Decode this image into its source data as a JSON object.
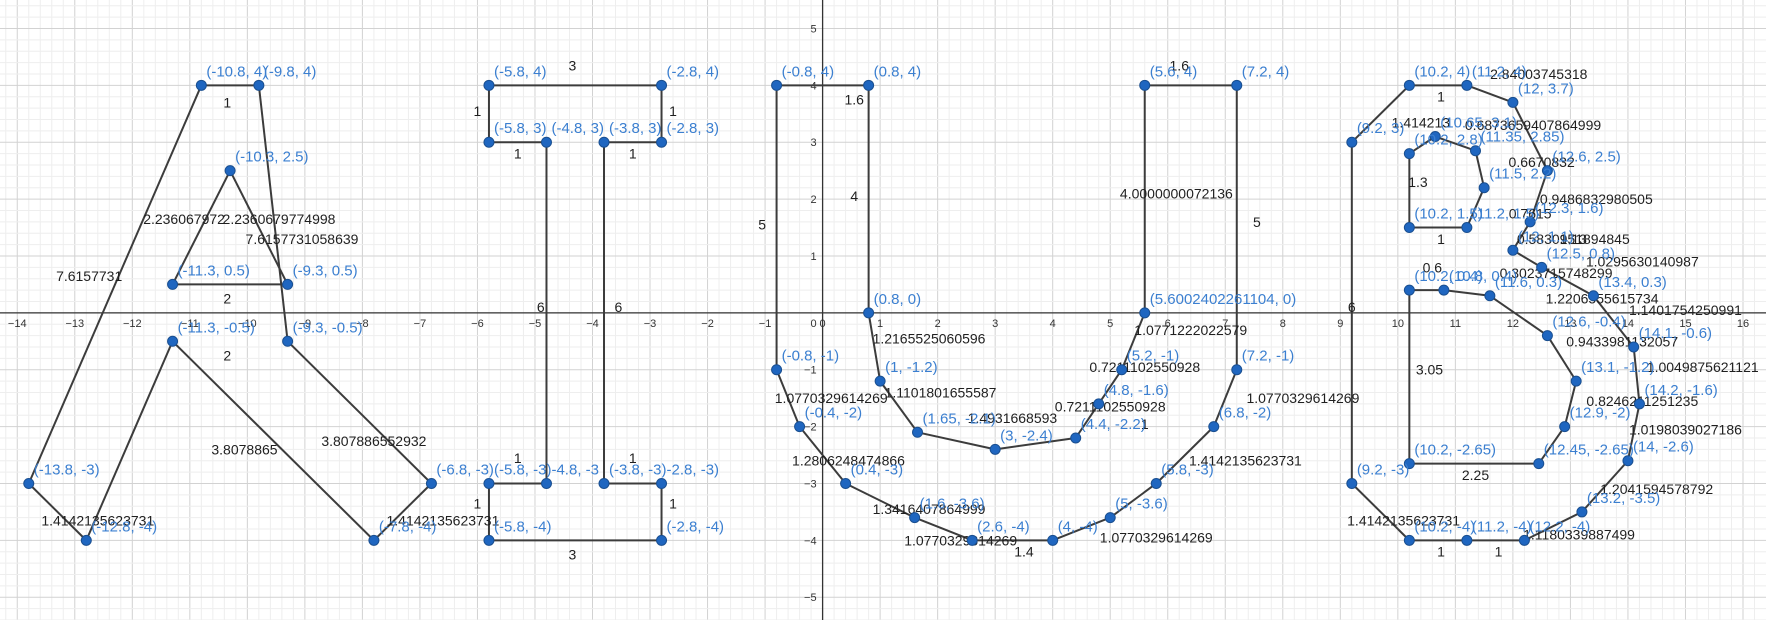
{
  "view": {
    "xlim": [
      -14.3,
      16.4
    ],
    "ylim": [
      -5.4,
      5.5
    ],
    "grid": true,
    "minor_step": 0.2,
    "major_step": 1
  },
  "colors": {
    "point": "#1f66c0",
    "point_label": "#3b7fd0",
    "segment": "#3c3c3c",
    "length_label": "#1f1f1f",
    "axis": "#333333"
  },
  "x_ticks": [
    -14,
    -13,
    -12,
    -11,
    -10,
    -9,
    -8,
    -7,
    -6,
    -5,
    -4,
    -3,
    -2,
    -1,
    0,
    1,
    2,
    3,
    4,
    5,
    6,
    7,
    8,
    9,
    10,
    11,
    12,
    13,
    14,
    15,
    16
  ],
  "y_ticks": [
    -5,
    -4,
    -3,
    -2,
    -1,
    1,
    2,
    3,
    4,
    5
  ],
  "points": [
    {
      "x": -10.8,
      "y": 4,
      "label": "(-10.8, 4)"
    },
    {
      "x": -9.8,
      "y": 4,
      "label": "(-9.8, 4)"
    },
    {
      "x": -10.3,
      "y": 2.5,
      "label": "(-10.3, 2.5)"
    },
    {
      "x": -11.3,
      "y": 0.5,
      "label": "(-11.3, 0.5)"
    },
    {
      "x": -9.3,
      "y": 0.5,
      "label": "(-9.3, 0.5)"
    },
    {
      "x": -11.3,
      "y": -0.5,
      "label": "(-11.3, -0.5)"
    },
    {
      "x": -9.3,
      "y": -0.5,
      "label": "(-9.3, -0.5)"
    },
    {
      "x": -13.8,
      "y": -3,
      "label": "(-13.8, -3)"
    },
    {
      "x": -12.8,
      "y": -4,
      "label": "(-12.8, -4)"
    },
    {
      "x": -7.8,
      "y": -4,
      "label": "(-7.8, -4)"
    },
    {
      "x": -6.8,
      "y": -3,
      "label": "(-6.8, -3)"
    },
    {
      "x": -5.8,
      "y": 4,
      "label": "(-5.8, 4)"
    },
    {
      "x": -2.8,
      "y": 4,
      "label": "(-2.8, 4)"
    },
    {
      "x": -5.8,
      "y": 3,
      "label": "(-5.8, 3)"
    },
    {
      "x": -4.8,
      "y": 3,
      "label": "(-4.8, 3)"
    },
    {
      "x": -3.8,
      "y": 3,
      "label": "(-3.8, 3)"
    },
    {
      "x": -2.8,
      "y": 3,
      "label": "(-2.8, 3)"
    },
    {
      "x": -5.8,
      "y": -3,
      "label": "(-5.8, -3)"
    },
    {
      "x": -4.8,
      "y": -3,
      "label": "-4.8, -3"
    },
    {
      "x": -3.8,
      "y": -3,
      "label": "(-3.8, -3)"
    },
    {
      "x": -2.8,
      "y": -3,
      "label": "-2.8, -3)"
    },
    {
      "x": -5.8,
      "y": -4,
      "label": "(-5.8, -4)"
    },
    {
      "x": -2.8,
      "y": -4,
      "label": "(-2.8, -4)"
    },
    {
      "x": -0.8,
      "y": 4,
      "label": "(-0.8, 4)"
    },
    {
      "x": 0.8,
      "y": 4,
      "label": "(0.8, 4)"
    },
    {
      "x": 0.8,
      "y": 0,
      "label": "(0.8, 0)"
    },
    {
      "x": -0.8,
      "y": -1,
      "label": "(-0.8, -1)"
    },
    {
      "x": 1,
      "y": -1.2,
      "label": "(1, -1.2)"
    },
    {
      "x": -0.4,
      "y": -2,
      "label": "(-0.4, -2)"
    },
    {
      "x": 1.65,
      "y": -2.1,
      "label": "(1.65, -2.1)"
    },
    {
      "x": 3,
      "y": -2.4,
      "label": "(3, -2.4)"
    },
    {
      "x": 4.4,
      "y": -2.2,
      "label": "(4.4, -2.2)"
    },
    {
      "x": 4.8,
      "y": -1.6,
      "label": "(4.8, -1.6)"
    },
    {
      "x": 5.2,
      "y": -1,
      "label": "(5.2, -1)"
    },
    {
      "x": 5.6002402261104,
      "y": 0,
      "label": "(5.6002402261104, 0)"
    },
    {
      "x": 5.6,
      "y": 4,
      "label": "(5.6, 4)"
    },
    {
      "x": 7.2,
      "y": 4,
      "label": "(7.2, 4)"
    },
    {
      "x": 7.2,
      "y": -1,
      "label": "(7.2, -1)"
    },
    {
      "x": 6.8,
      "y": -2,
      "label": "(6.8, -2)"
    },
    {
      "x": 5.8,
      "y": -3,
      "label": "(5.8, -3)"
    },
    {
      "x": 5,
      "y": -3.6,
      "label": "(5, -3.6)"
    },
    {
      "x": 4,
      "y": -4,
      "label": "(4, -4)"
    },
    {
      "x": 2.6,
      "y": -4,
      "label": "(2.6, -4)"
    },
    {
      "x": 1.6,
      "y": -3.6,
      "label": "(1.6, -3.6)"
    },
    {
      "x": 0.4,
      "y": -3,
      "label": "(0.4, -3)"
    },
    {
      "x": 10.2,
      "y": 4,
      "label": "(10.2, 4)"
    },
    {
      "x": 11.2,
      "y": 4,
      "label": "(11.2, 4)"
    },
    {
      "x": 12,
      "y": 3.7,
      "label": "(12, 3.7)"
    },
    {
      "x": 12.6,
      "y": 2.5,
      "label": "(12.6, 2.5)"
    },
    {
      "x": 12.3,
      "y": 1.6,
      "label": "(12.3, 1.6)"
    },
    {
      "x": 12,
      "y": 1.1,
      "label": "(12, 1.1)"
    },
    {
      "x": 12.5,
      "y": 0.8,
      "label": "(12.5, 0.8)"
    },
    {
      "x": 13.4,
      "y": 0.3,
      "label": "(13.4, 0.3)"
    },
    {
      "x": 14.1,
      "y": -0.6,
      "label": "(14.1, -0.6)"
    },
    {
      "x": 14.2,
      "y": -1.6,
      "label": "(14.2, -1.6)"
    },
    {
      "x": 14,
      "y": -2.6,
      "label": "(14, -2.6)"
    },
    {
      "x": 13.2,
      "y": -3.5,
      "label": "(13.2, -3.5)"
    },
    {
      "x": 12.2,
      "y": -4,
      "label": "(12.2, -4)"
    },
    {
      "x": 11.2,
      "y": -4,
      "label": "(11.2, -4)"
    },
    {
      "x": 10.2,
      "y": -4,
      "label": "(10.2, -4)"
    },
    {
      "x": 9.2,
      "y": -3,
      "label": "(9.2, -3)"
    },
    {
      "x": 9.2,
      "y": 3,
      "label": "(9.2, 3)"
    },
    {
      "x": 10.65,
      "y": 3.1,
      "label": "(10.65, 3.1)"
    },
    {
      "x": 10.2,
      "y": 2.8,
      "label": "(10.2, 2.8)"
    },
    {
      "x": 11.35,
      "y": 2.85,
      "label": "(11.35, 2.85)"
    },
    {
      "x": 11.5,
      "y": 2.2,
      "label": "(11.5, 2.2)"
    },
    {
      "x": 11.2,
      "y": 1.5,
      "label": "(11.2, 1.5)"
    },
    {
      "x": 10.2,
      "y": 1.5,
      "label": "(10.2, 1.5)"
    },
    {
      "x": 10.2,
      "y": 0.4,
      "label": "(10.2, 0.4)"
    },
    {
      "x": 10.8,
      "y": 0.4,
      "label": "(10.8, 0.4)"
    },
    {
      "x": 11.6,
      "y": 0.3,
      "label": "(11.6, 0.3)"
    },
    {
      "x": 12.6,
      "y": -0.4,
      "label": "(12.6, -0.4)"
    },
    {
      "x": 13.1,
      "y": -1.2,
      "label": "(13.1, -1.2)"
    },
    {
      "x": 12.9,
      "y": -2,
      "label": "(12.9, -2)"
    },
    {
      "x": 12.45,
      "y": -2.65,
      "label": "(12.45, -2.65)"
    },
    {
      "x": 10.2,
      "y": -2.65,
      "label": "(10.2, -2.65)"
    }
  ],
  "segments": [
    [
      0,
      1
    ],
    [
      1,
      6
    ],
    [
      6,
      10
    ],
    [
      10,
      9
    ],
    [
      9,
      5
    ],
    [
      5,
      8
    ],
    [
      8,
      7
    ],
    [
      7,
      0
    ],
    [
      2,
      3
    ],
    [
      3,
      4
    ],
    [
      4,
      2
    ],
    [
      11,
      12
    ],
    [
      12,
      16
    ],
    [
      16,
      15
    ],
    [
      15,
      19
    ],
    [
      19,
      20
    ],
    [
      20,
      22
    ],
    [
      22,
      21
    ],
    [
      21,
      17
    ],
    [
      17,
      18
    ],
    [
      18,
      14
    ],
    [
      14,
      13
    ],
    [
      13,
      11
    ],
    [
      23,
      24
    ],
    [
      24,
      25
    ],
    [
      25,
      27
    ],
    [
      27,
      29
    ],
    [
      29,
      30
    ],
    [
      30,
      31
    ],
    [
      31,
      32
    ],
    [
      32,
      33
    ],
    [
      33,
      34
    ],
    [
      34,
      35
    ],
    [
      35,
      36
    ],
    [
      36,
      37
    ],
    [
      37,
      38
    ],
    [
      38,
      39
    ],
    [
      39,
      40
    ],
    [
      40,
      41
    ],
    [
      41,
      42
    ],
    [
      42,
      43
    ],
    [
      43,
      44
    ],
    [
      44,
      28
    ],
    [
      28,
      26
    ],
    [
      26,
      23
    ],
    [
      45,
      46
    ],
    [
      46,
      47
    ],
    [
      47,
      48
    ],
    [
      48,
      49
    ],
    [
      49,
      50
    ],
    [
      50,
      51
    ],
    [
      51,
      52
    ],
    [
      52,
      53
    ],
    [
      53,
      54
    ],
    [
      54,
      55
    ],
    [
      55,
      56
    ],
    [
      56,
      57
    ],
    [
      57,
      58
    ],
    [
      58,
      59
    ],
    [
      59,
      60
    ],
    [
      60,
      61
    ],
    [
      61,
      45
    ],
    [
      63,
      62
    ],
    [
      62,
      64
    ],
    [
      64,
      65
    ],
    [
      65,
      66
    ],
    [
      66,
      67
    ],
    [
      67,
      63
    ],
    [
      68,
      69
    ],
    [
      69,
      70
    ],
    [
      70,
      71
    ],
    [
      71,
      72
    ],
    [
      72,
      73
    ],
    [
      73,
      74
    ],
    [
      74,
      75
    ],
    [
      75,
      68
    ]
  ],
  "length_labels": [
    {
      "x": -10.35,
      "y": 3.7,
      "text": "1"
    },
    {
      "x": -11.1,
      "y": 1.65,
      "text": "2.236067972"
    },
    {
      "x": -9.45,
      "y": 1.65,
      "text": "2.2360679774998"
    },
    {
      "x": -9.05,
      "y": 1.3,
      "text": "7.6157731058639"
    },
    {
      "x": -12.75,
      "y": 0.65,
      "text": "7.6157731"
    },
    {
      "x": -10.35,
      "y": 0.25,
      "text": "2"
    },
    {
      "x": -10.35,
      "y": -0.75,
      "text": "2"
    },
    {
      "x": -10.05,
      "y": -2.4,
      "text": "3.8078865"
    },
    {
      "x": -7.8,
      "y": -2.25,
      "text": "3.807886552932"
    },
    {
      "x": -12.6,
      "y": -3.65,
      "text": "1.4142135623731"
    },
    {
      "x": -6.6,
      "y": -3.65,
      "text": "1.4142135623731"
    },
    {
      "x": -4.35,
      "y": 4.35,
      "text": "3"
    },
    {
      "x": -6.0,
      "y": 3.55,
      "text": "1"
    },
    {
      "x": -2.6,
      "y": 3.55,
      "text": "1"
    },
    {
      "x": -5.3,
      "y": 2.8,
      "text": "1"
    },
    {
      "x": -3.3,
      "y": 2.8,
      "text": "1"
    },
    {
      "x": -4.9,
      "y": 0.1,
      "text": "6"
    },
    {
      "x": -3.55,
      "y": 0.1,
      "text": "6"
    },
    {
      "x": -5.3,
      "y": -2.55,
      "text": "1"
    },
    {
      "x": -3.3,
      "y": -2.55,
      "text": "1"
    },
    {
      "x": -6.0,
      "y": -3.35,
      "text": "1"
    },
    {
      "x": -2.6,
      "y": -3.35,
      "text": "1"
    },
    {
      "x": -4.35,
      "y": -4.25,
      "text": "3"
    },
    {
      "x": -1.05,
      "y": 1.55,
      "text": "5"
    },
    {
      "x": 0.55,
      "y": 3.75,
      "text": "1.6"
    },
    {
      "x": 0.55,
      "y": 2.05,
      "text": "4"
    },
    {
      "x": 1.85,
      "y": -0.45,
      "text": "1.2165525060596"
    },
    {
      "x": 2.05,
      "y": -1.4,
      "text": "1.1101801655587"
    },
    {
      "x": 0.15,
      "y": -1.5,
      "text": "1.0770329614269"
    },
    {
      "x": 3.3,
      "y": -1.85,
      "text": "1.4931668593"
    },
    {
      "x": 5.6,
      "y": -0.95,
      "text": "0.7211102550928"
    },
    {
      "x": 5.0,
      "y": -1.65,
      "text": "0.7211102550928"
    },
    {
      "x": 5.6,
      "y": -1.95,
      "text": "1"
    },
    {
      "x": 0.45,
      "y": -2.6,
      "text": "1.2806248474866"
    },
    {
      "x": 1.85,
      "y": -3.45,
      "text": "1.3416407864999"
    },
    {
      "x": 2.4,
      "y": -4.0,
      "text": "1.0770329614269"
    },
    {
      "x": 3.5,
      "y": -4.2,
      "text": "1.4"
    },
    {
      "x": 5.8,
      "y": -3.95,
      "text": "1.0770329614269"
    },
    {
      "x": 6.2,
      "y": 4.35,
      "text": "1.6"
    },
    {
      "x": 6.15,
      "y": 2.1,
      "text": "4.0000000072136"
    },
    {
      "x": 7.55,
      "y": 1.6,
      "text": "5"
    },
    {
      "x": 6.4,
      "y": -0.3,
      "text": "1.0771222022579"
    },
    {
      "x": 8.35,
      "y": -1.5,
      "text": "1.0770329614269"
    },
    {
      "x": 7.35,
      "y": -2.6,
      "text": "1.4142135623731"
    },
    {
      "x": 10.75,
      "y": 3.8,
      "text": "1"
    },
    {
      "x": 12.45,
      "y": 4.2,
      "text": "2.84003745318"
    },
    {
      "x": 10.4,
      "y": 3.35,
      "text": "1.414213"
    },
    {
      "x": 12.35,
      "y": 3.3,
      "text": "0.6873659407864999"
    },
    {
      "x": 12.5,
      "y": 2.65,
      "text": "0.6670832"
    },
    {
      "x": 13.45,
      "y": 2.0,
      "text": "0.9486832980505"
    },
    {
      "x": 12.3,
      "y": 1.75,
      "text": "0.7615"
    },
    {
      "x": 13.05,
      "y": 1.3,
      "text": "1.13"
    },
    {
      "x": 13.05,
      "y": 1.3,
      "text": "0.5830951894845"
    },
    {
      "x": 14.25,
      "y": 0.9,
      "text": "1.0295630140987"
    },
    {
      "x": 12.75,
      "y": 0.7,
      "text": "0.3023715748299"
    },
    {
      "x": 13.55,
      "y": 0.25,
      "text": "1.2206555615734"
    },
    {
      "x": 15.0,
      "y": 0.05,
      "text": "1.1401754250991"
    },
    {
      "x": 13.9,
      "y": -0.5,
      "text": "0.9433981132057"
    },
    {
      "x": 15.3,
      "y": -0.95,
      "text": "1.0049875621121"
    },
    {
      "x": 14.25,
      "y": -1.55,
      "text": "0.8246211251235"
    },
    {
      "x": 15.0,
      "y": -2.05,
      "text": "1.0198039027186"
    },
    {
      "x": 14.5,
      "y": -3.1,
      "text": "1.2041594578792"
    },
    {
      "x": 13.15,
      "y": -3.9,
      "text": "1.1180339887499"
    },
    {
      "x": 10.35,
      "y": 2.3,
      "text": "1.3"
    },
    {
      "x": 10.75,
      "y": 1.3,
      "text": "1"
    },
    {
      "x": 9.2,
      "y": 0.1,
      "text": "6"
    },
    {
      "x": 10.6,
      "y": 0.8,
      "text": "0.6"
    },
    {
      "x": 10.55,
      "y": -1.0,
      "text": "3.05"
    },
    {
      "x": 11.35,
      "y": -2.85,
      "text": "2.25"
    },
    {
      "x": 10.1,
      "y": -3.65,
      "text": "1.4142135623731"
    },
    {
      "x": 10.75,
      "y": -4.2,
      "text": "1"
    },
    {
      "x": 11.75,
      "y": -4.2,
      "text": "1"
    }
  ]
}
